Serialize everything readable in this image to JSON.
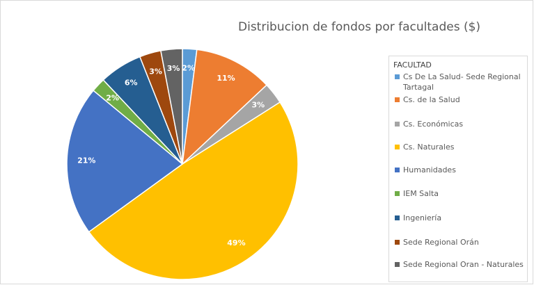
{
  "chart_data": {
    "type": "pie",
    "title": "Distribucion de fondos por facultades ($)",
    "legend_title": "FACULTAD",
    "categories": [
      "Cs De La Salud- Sede Regional Tartagal",
      "Cs. de la Salud",
      "Cs. Económicas",
      "Cs. Naturales",
      "Humanidades",
      "IEM Salta",
      "Ingeniería",
      "Sede Regional Orán",
      "Sede Regional Oran - Naturales"
    ],
    "values": [
      2,
      11,
      3,
      49,
      21,
      2,
      6,
      3,
      3
    ],
    "value_labels": [
      "2%",
      "11%",
      "3%",
      "49%",
      "21%",
      "2%",
      "6%",
      "3%",
      "3%"
    ],
    "colors": [
      "#5b9bd5",
      "#ed7d31",
      "#a5a5a5",
      "#ffc000",
      "#4472c4",
      "#70ad47",
      "#255e91",
      "#9e480e",
      "#636363"
    ],
    "legend": "right"
  }
}
